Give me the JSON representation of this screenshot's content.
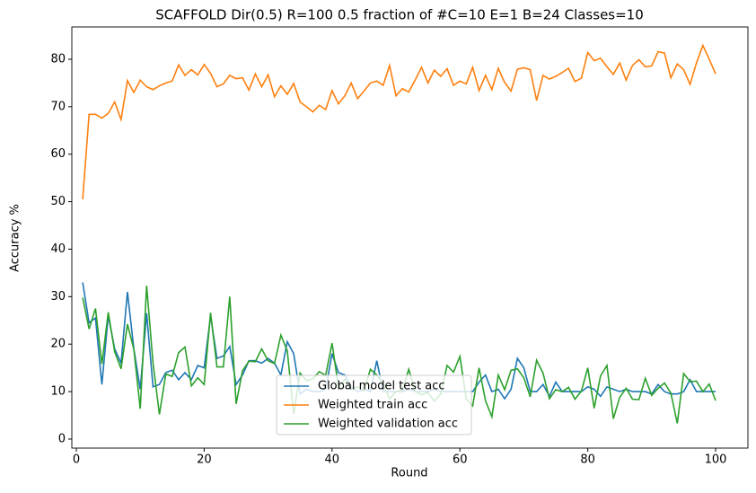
{
  "chart_data": {
    "type": "line",
    "title": "SCAFFOLD Dir(0.5) R=100 0.5 fraction of #C=10 E=1 B=24  Classes=10",
    "xlabel": "Round",
    "ylabel": "Accuracy %",
    "x": [
      1,
      2,
      3,
      4,
      5,
      6,
      7,
      8,
      9,
      10,
      11,
      12,
      13,
      14,
      15,
      16,
      17,
      18,
      19,
      20,
      21,
      22,
      23,
      24,
      25,
      26,
      27,
      28,
      29,
      30,
      31,
      32,
      33,
      34,
      35,
      36,
      37,
      38,
      39,
      40,
      41,
      42,
      43,
      44,
      45,
      46,
      47,
      48,
      49,
      50,
      51,
      52,
      53,
      54,
      55,
      56,
      57,
      58,
      59,
      60,
      61,
      62,
      63,
      64,
      65,
      66,
      67,
      68,
      69,
      70,
      71,
      72,
      73,
      74,
      75,
      76,
      77,
      78,
      79,
      80,
      81,
      82,
      83,
      84,
      85,
      86,
      87,
      88,
      89,
      90,
      91,
      92,
      93,
      94,
      95,
      96,
      97,
      98,
      99,
      100
    ],
    "series": [
      {
        "name": "Global model test acc",
        "color": "#1f77b4",
        "values": [
          33,
          24.5,
          25.5,
          11.5,
          26,
          19,
          16,
          31,
          19,
          10.5,
          26.5,
          11,
          11.5,
          14,
          14.5,
          12.5,
          14,
          12.5,
          15.5,
          15,
          26,
          17,
          17.5,
          19.5,
          11.5,
          13.5,
          16.5,
          16.5,
          16,
          17,
          16,
          13.5,
          20.5,
          18,
          9.5,
          10.5,
          10,
          10,
          10.5,
          18,
          14,
          13.5,
          11,
          10,
          10.5,
          10,
          16.5,
          10,
          10,
          10,
          10,
          10.5,
          10,
          10,
          10,
          10.5,
          10,
          10,
          10,
          10,
          10,
          10,
          12,
          13.5,
          10,
          10.5,
          8.5,
          10.5,
          17,
          15,
          10,
          10,
          11.5,
          9,
          12,
          10,
          10,
          10,
          10,
          11,
          10.5,
          9,
          11,
          10.5,
          10,
          10.5,
          10,
          10,
          10,
          9.5,
          11.5,
          10,
          9.5,
          9.5,
          10,
          12.5,
          10,
          10,
          10,
          10
        ]
      },
      {
        "name": "Weighted train acc",
        "color": "#ff7f0e",
        "values": [
          50.5,
          68.4,
          68.4,
          67.6,
          68.6,
          71,
          67.3,
          75.5,
          73,
          75.6,
          74.2,
          73.6,
          74.4,
          75,
          75.4,
          78.8,
          76.6,
          77.8,
          76.7,
          78.9,
          77,
          74.2,
          74.8,
          76.6,
          75.9,
          76.1,
          73.5,
          76.9,
          74.2,
          76.7,
          72.1,
          74.4,
          72.6,
          74.9,
          71,
          70,
          68.9,
          70.3,
          69.4,
          73.4,
          70.6,
          72.3,
          75,
          71.7,
          73.3,
          75,
          75.4,
          74.5,
          78.7,
          72.3,
          73.8,
          73.1,
          75.6,
          78.3,
          75,
          77.7,
          76.4,
          78,
          74.5,
          75.4,
          74.8,
          78.3,
          73.4,
          76.6,
          73.6,
          78.1,
          75.1,
          73.3,
          77.9,
          78.2,
          77.8,
          71.3,
          76.6,
          75.8,
          76.4,
          77.2,
          78.1,
          75.3,
          76,
          81.4,
          79.7,
          80.2,
          78.4,
          76.8,
          79.2,
          75.6,
          78.7,
          79.9,
          78.4,
          78.6,
          81.6,
          81.3,
          76.1,
          79,
          77.8,
          74.7,
          79.2,
          82.9,
          80,
          76.9
        ]
      },
      {
        "name": "Weighted validation acc",
        "color": "#2ca02c",
        "values": [
          29.8,
          23.2,
          27.5,
          15.8,
          26.7,
          18.4,
          14.8,
          24.2,
          18.9,
          6.4,
          32.3,
          16,
          5.2,
          13.7,
          13.2,
          18.2,
          19.4,
          11.2,
          12.9,
          11.5,
          26.6,
          15.2,
          15.2,
          30,
          7.4,
          14.4,
          16.4,
          16.3,
          19,
          16.5,
          15.9,
          21.9,
          18.6,
          5.3,
          13.9,
          12.3,
          12.7,
          14.2,
          13.4,
          20.2,
          11,
          12.6,
          10.5,
          11,
          10.2,
          14.7,
          13.5,
          11.6,
          8.5,
          10,
          10.3,
          14.7,
          10.1,
          9.3,
          9.8,
          8,
          9.5,
          15.5,
          14.1,
          17.4,
          8.4,
          7,
          15,
          8.1,
          4.7,
          13.5,
          10.4,
          14.5,
          14.8,
          12.9,
          8.9,
          16.6,
          13.9,
          8.5,
          10.4,
          10,
          10.9,
          8.4,
          10.1,
          15,
          6.5,
          13.3,
          15.5,
          4.3,
          8.8,
          10.7,
          8.4,
          8.3,
          12.8,
          9.2,
          10.7,
          11.8,
          9.7,
          3.3,
          13.8,
          12.1,
          12.2,
          10,
          11.6,
          8.1
        ]
      }
    ],
    "xlim": [
      -0.7,
      105.05
    ],
    "xticks": [
      0,
      20,
      40,
      60,
      80,
      100
    ],
    "ylim": [
      -1.9,
      86.8
    ],
    "yticks": [
      0,
      10,
      20,
      30,
      40,
      50,
      60,
      70,
      80
    ],
    "legend": "lower center"
  }
}
